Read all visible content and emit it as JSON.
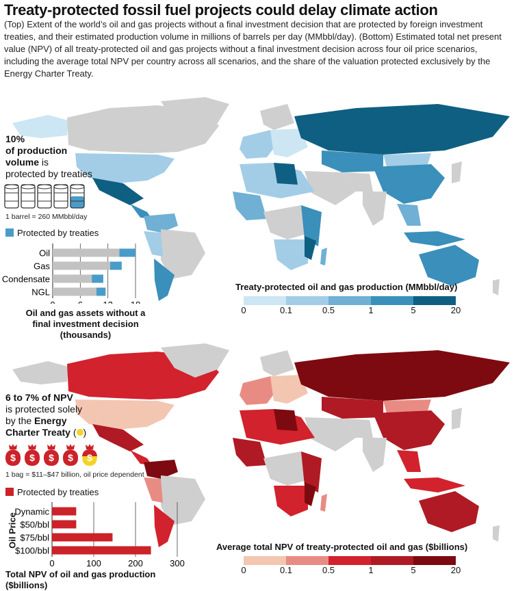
{
  "title": "Treaty-protected fossil fuel projects could delay climate action",
  "description": "(Top) Extent of the world’s oil and gas projects without a final investment decision that are protected by foreign investment treaties, and their estimated production volume in millions of barrels per day (MMbbl/day). (Bottom) Estimated total net present value (NPV) of all treaty-protected oil and gas projects without a final investment decision across four oil price scenarios, including the average total NPV per country across all scenarios, and the share of the valuation protected exclusively by the Energy Charter Treaty.",
  "colors": {
    "blue_scale": [
      "#cde6f3",
      "#a3cde6",
      "#6fb0d4",
      "#3a8fbb",
      "#0f5f82"
    ],
    "red_scale": [
      "#f3c6b2",
      "#e88c83",
      "#d2222d",
      "#b01a24",
      "#7d0a10"
    ],
    "no_data": "#cfcfcf",
    "bar_gray": "#c2c2c2",
    "bar_blue": "#4a9cc8",
    "bar_red": "#cc2229",
    "ect_yellow": "#f4d325"
  },
  "top": {
    "stat_pct": "10%",
    "stat_line1": "of production",
    "stat_bold2": "volume",
    "stat_rest2": " is",
    "stat_line3": "protected by treaties",
    "barrel_note": "1 barrel = 260 MMbbl/day",
    "barrels": {
      "total": 5,
      "filled_fraction_last": 0.5
    },
    "protected_label": "Protected by treaties",
    "legend_title": "Treaty-protected oil and gas production (MMbbl/day)",
    "legend_ticks": [
      "0",
      "0.1",
      "0.5",
      "1",
      "5",
      "20"
    ]
  },
  "bottom": {
    "stat_pct": "6 to 7% of NPV",
    "stat_line2": "is protected solely",
    "stat_line3a": "by the ",
    "stat_line3b": "Energy",
    "stat_line4a": "Charter Treaty",
    "stat_line4b": " (",
    "stat_line4c": ")",
    "bag_note": "1 bag = $11–$47 billion, oil price dependent",
    "bags": {
      "total": 5,
      "ect_fraction_last": 0.5
    },
    "protected_label": "Protected by treaties",
    "legend_title": "Average total NPV of treaty-protected oil and gas ($billions)",
    "legend_ticks": [
      "0",
      "0.1",
      "0.5",
      "1",
      "5",
      "20"
    ],
    "y_axis_title": "Oil Price"
  },
  "chart_data": [
    {
      "type": "bar",
      "orientation": "horizontal",
      "stacked": true,
      "categories": [
        "Oil",
        "Gas",
        "Condensate",
        "NGL"
      ],
      "series": [
        {
          "name": "",
          "values": [
            14.5,
            12.5,
            8.5,
            9.5
          ]
        },
        {
          "name": "Protected by treaties",
          "values": [
            3.5,
            2.5,
            2.5,
            2.0
          ]
        }
      ],
      "xticks": [
        "0",
        "6",
        "12",
        "18"
      ],
      "xlim": [
        0,
        18
      ],
      "xlabel": "Oil and gas assets without a final investment decision (thousands)",
      "grid": true
    },
    {
      "type": "bar",
      "orientation": "horizontal",
      "categories": [
        "Dynamic",
        "$50/bbl",
        "$75/bbl",
        "$100/bbl"
      ],
      "series": [
        {
          "name": "Protected by treaties",
          "values": [
            58,
            58,
            145,
            237
          ]
        }
      ],
      "xticks": [
        "0",
        "100",
        "200",
        "300"
      ],
      "xlim": [
        0,
        300
      ],
      "xlabel": "Total NPV of oil and gas production ($billions)",
      "ylabel": "Oil Price",
      "grid": true
    }
  ]
}
